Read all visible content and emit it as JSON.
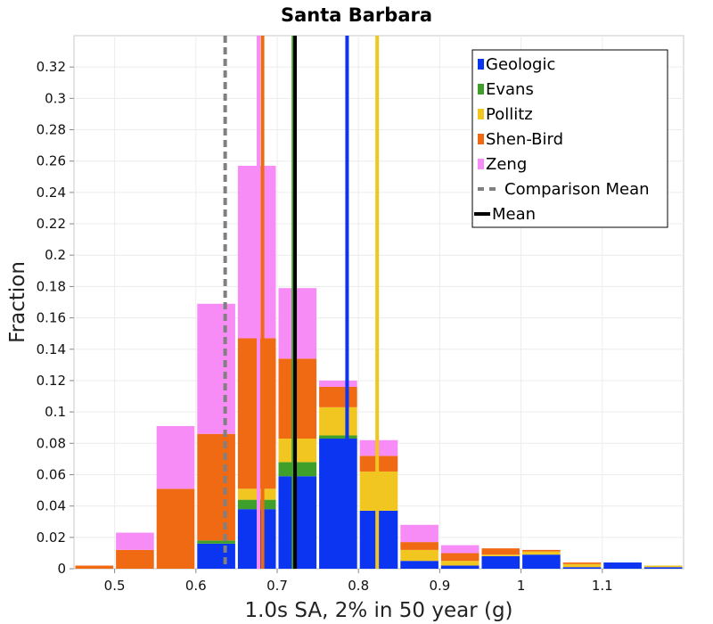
{
  "chart_data": {
    "type": "bar",
    "title": "Santa Barbara",
    "xlabel": "1.0s SA, 2% in 50 year (g)",
    "ylabel": "Fraction",
    "xlim": [
      0.45,
      1.2
    ],
    "ylim": [
      0,
      0.34
    ],
    "grid": true,
    "legend_position": "top-right",
    "bin_width": 0.05,
    "x_ticks": [
      0.5,
      0.6,
      0.7,
      0.8,
      0.9,
      1.0,
      1.1
    ],
    "x_tick_labels": [
      "0.5",
      "0.6",
      "0.7",
      "0.8",
      "0.9",
      "1",
      "1.1"
    ],
    "y_ticks": [
      0,
      0.02,
      0.04,
      0.06,
      0.08,
      0.1,
      0.12,
      0.14,
      0.16,
      0.18,
      0.2,
      0.22,
      0.24,
      0.26,
      0.28,
      0.3,
      0.32
    ],
    "y_tick_labels": [
      "0",
      "0.02",
      "0.04",
      "0.06",
      "0.08",
      "0.1",
      "0.12",
      "0.14",
      "0.16",
      "0.18",
      "0.2",
      "0.22",
      "0.24",
      "0.26",
      "0.28",
      "0.3",
      "0.32"
    ],
    "bin_centers": [
      0.475,
      0.525,
      0.575,
      0.625,
      0.675,
      0.725,
      0.775,
      0.825,
      0.875,
      0.925,
      0.975,
      1.025,
      1.075,
      1.125,
      1.175
    ],
    "series": [
      {
        "name": "Geologic",
        "color": "#0b35f0",
        "values": [
          0,
          0,
          0,
          0.016,
          0.038,
          0.059,
          0.083,
          0.037,
          0.005,
          0.002,
          0.008,
          0.009,
          0.001,
          0.004,
          0.001
        ]
      },
      {
        "name": "Evans",
        "color": "#3ea02a",
        "values": [
          0,
          0,
          0,
          0.002,
          0.006,
          0.009,
          0.002,
          0,
          0,
          0,
          0,
          0,
          0,
          0,
          0
        ]
      },
      {
        "name": "Pollitz",
        "color": "#f2c620",
        "values": [
          0,
          0,
          0,
          0,
          0.007,
          0.015,
          0.018,
          0.025,
          0.007,
          0.003,
          0.001,
          0.002,
          0.002,
          0,
          0.001
        ]
      },
      {
        "name": "Shen-Bird",
        "color": "#f06a14",
        "values": [
          0.002,
          0.012,
          0.051,
          0.068,
          0.096,
          0.051,
          0.013,
          0.01,
          0.005,
          0.005,
          0.004,
          0.001,
          0.001,
          0,
          0
        ]
      },
      {
        "name": "Zeng",
        "color": "#f88cf6",
        "values": [
          0,
          0.011,
          0.04,
          0.083,
          0.11,
          0.045,
          0.004,
          0.01,
          0.011,
          0.005,
          0,
          0,
          0,
          0,
          0
        ]
      }
    ],
    "vertical_lines": [
      {
        "name": "Zeng",
        "x": 0.677,
        "color": "#f88cf6",
        "style": "solid"
      },
      {
        "name": "Shen-Bird",
        "x": 0.682,
        "color": "#f06a14",
        "style": "solid"
      },
      {
        "name": "Evans",
        "x": 0.72,
        "color": "#3ea02a",
        "style": "solid"
      },
      {
        "name": "Geologic",
        "x": 0.786,
        "color": "#0b35f0",
        "style": "solid"
      },
      {
        "name": "Pollitz",
        "x": 0.823,
        "color": "#f2c620",
        "style": "solid"
      },
      {
        "name": "Comparison Mean",
        "x": 0.636,
        "color": "#808080",
        "style": "dashed"
      },
      {
        "name": "Mean",
        "x": 0.722,
        "color": "#000000",
        "style": "solid"
      }
    ],
    "legend": [
      {
        "label": "Geologic",
        "color": "#0b35f0",
        "kind": "box"
      },
      {
        "label": "Evans",
        "color": "#3ea02a",
        "kind": "box"
      },
      {
        "label": "Pollitz",
        "color": "#f2c620",
        "kind": "box"
      },
      {
        "label": "Shen-Bird",
        "color": "#f06a14",
        "kind": "box"
      },
      {
        "label": "Zeng",
        "color": "#f88cf6",
        "kind": "box"
      },
      {
        "label": "Comparison Mean",
        "color": "#808080",
        "kind": "dashed"
      },
      {
        "label": "Mean",
        "color": "#000000",
        "kind": "line"
      }
    ]
  }
}
